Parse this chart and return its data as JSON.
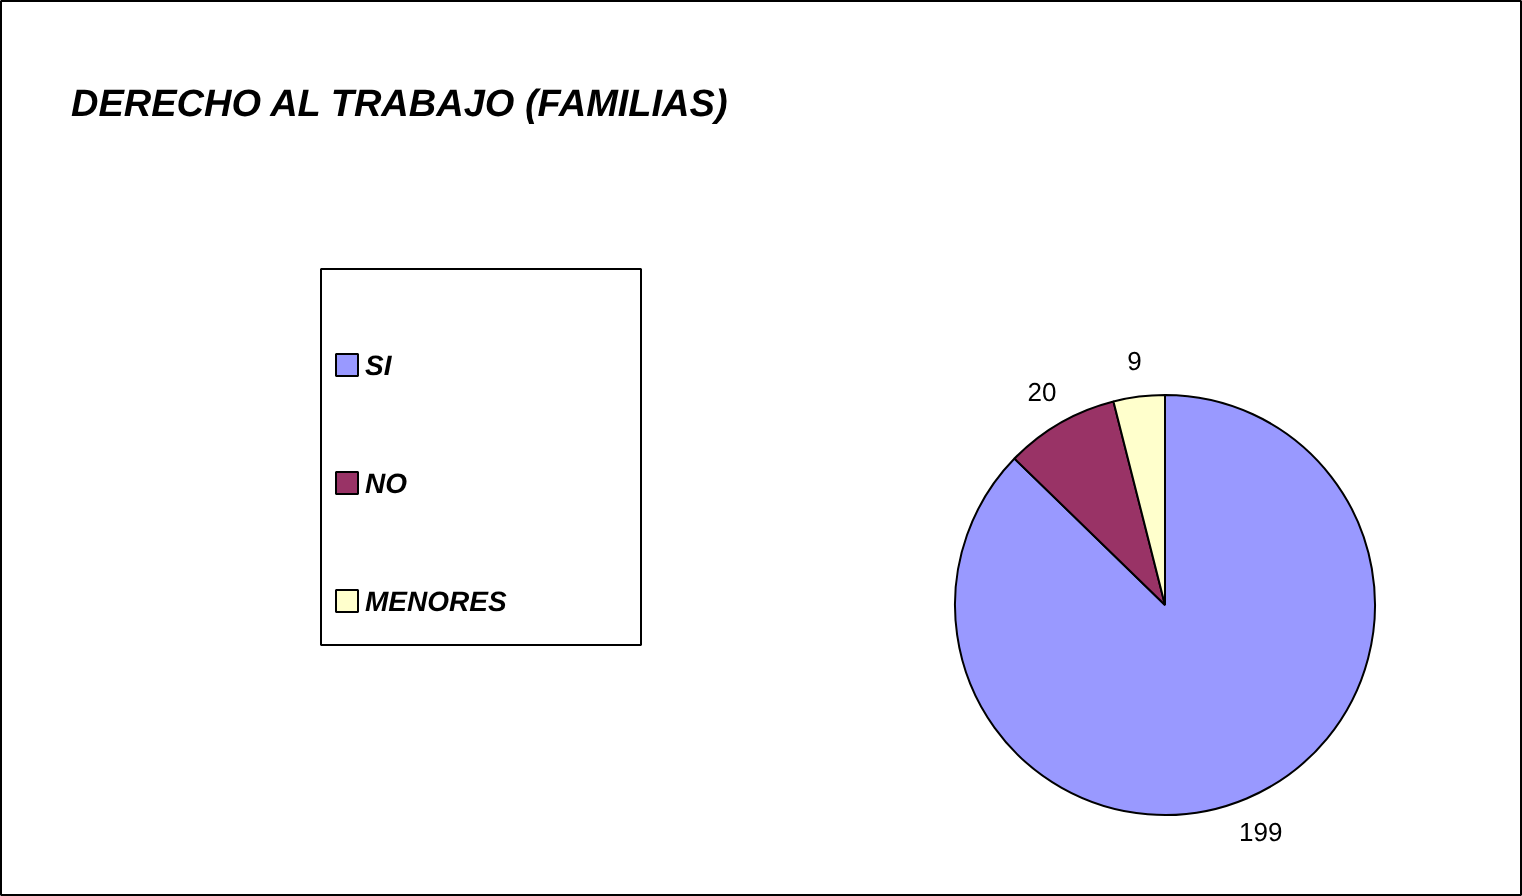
{
  "chart_data": {
    "type": "pie",
    "title": "DERECHO AL TRABAJO (FAMILIAS)",
    "categories": [
      "SI",
      "NO",
      "MENORES"
    ],
    "values": [
      199,
      20,
      9
    ],
    "colors": [
      "#9999ff",
      "#993366",
      "#ffffcc"
    ],
    "data_labels": true,
    "legend": "left"
  }
}
